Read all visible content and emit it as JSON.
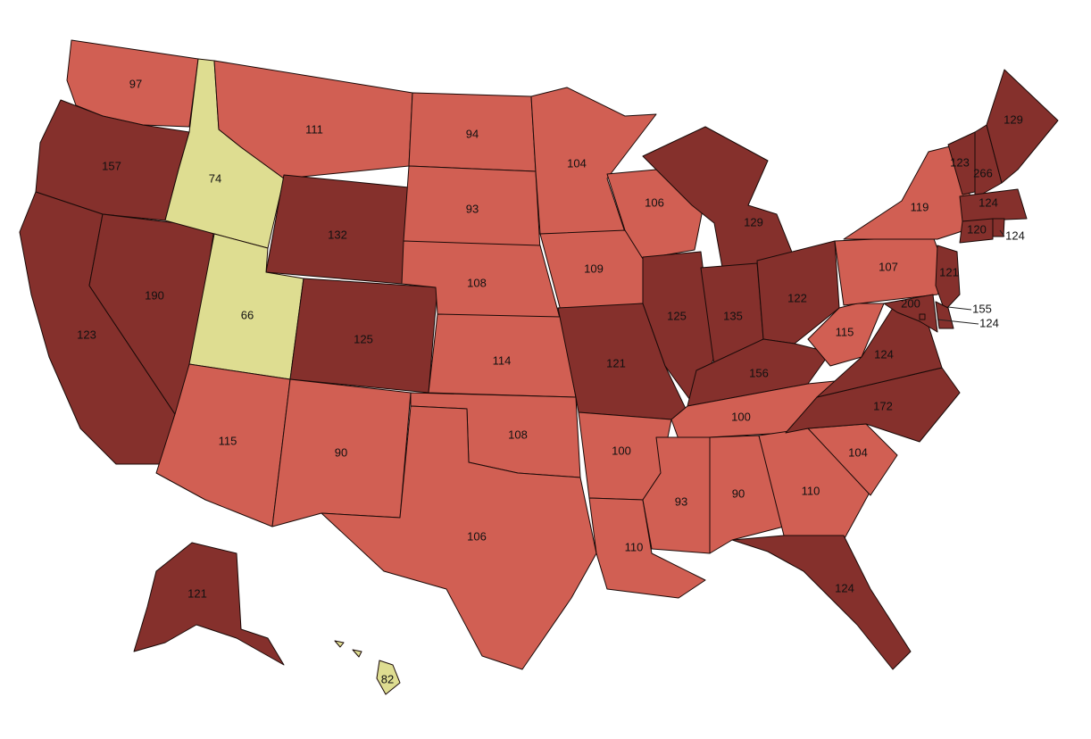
{
  "colors": {
    "high": "#85302c",
    "mid": "#d15f53",
    "low": "#dedd91",
    "background": "#ffffff"
  },
  "legend_thresholds": {
    "low_below": 90,
    "high_from": 120
  },
  "states": [
    {
      "code": "WA",
      "value": 97
    },
    {
      "code": "OR",
      "value": 157
    },
    {
      "code": "CA",
      "value": 123
    },
    {
      "code": "NV",
      "value": 190
    },
    {
      "code": "ID",
      "value": 74
    },
    {
      "code": "MT",
      "value": 111
    },
    {
      "code": "WY",
      "value": 132
    },
    {
      "code": "UT",
      "value": 66
    },
    {
      "code": "CO",
      "value": 125
    },
    {
      "code": "AZ",
      "value": 115
    },
    {
      "code": "NM",
      "value": 90
    },
    {
      "code": "ND",
      "value": 94
    },
    {
      "code": "SD",
      "value": 93
    },
    {
      "code": "NE",
      "value": 108
    },
    {
      "code": "KS",
      "value": 114
    },
    {
      "code": "OK",
      "value": 108
    },
    {
      "code": "TX",
      "value": 106
    },
    {
      "code": "MN",
      "value": 104
    },
    {
      "code": "IA",
      "value": 109
    },
    {
      "code": "MO",
      "value": 121
    },
    {
      "code": "AR",
      "value": 100
    },
    {
      "code": "LA",
      "value": 110
    },
    {
      "code": "WI",
      "value": 106
    },
    {
      "code": "IL",
      "value": 125
    },
    {
      "code": "MI",
      "value": 129
    },
    {
      "code": "IN",
      "value": 135
    },
    {
      "code": "OH",
      "value": 122
    },
    {
      "code": "KY",
      "value": 156
    },
    {
      "code": "TN",
      "value": 100
    },
    {
      "code": "MS",
      "value": 93
    },
    {
      "code": "AL",
      "value": 90
    },
    {
      "code": "GA",
      "value": 110
    },
    {
      "code": "FL",
      "value": 124
    },
    {
      "code": "SC",
      "value": 104
    },
    {
      "code": "NC",
      "value": 172
    },
    {
      "code": "VA",
      "value": 124
    },
    {
      "code": "WV",
      "value": 115
    },
    {
      "code": "PA",
      "value": 107
    },
    {
      "code": "NY",
      "value": 119
    },
    {
      "code": "VT",
      "value": 123
    },
    {
      "code": "NH",
      "value": 266
    },
    {
      "code": "ME",
      "value": 129
    },
    {
      "code": "MA",
      "value": 124
    },
    {
      "code": "RI",
      "value": 124
    },
    {
      "code": "CT",
      "value": 120
    },
    {
      "code": "NJ",
      "value": 121
    },
    {
      "code": "DE",
      "value": 155
    },
    {
      "code": "MD",
      "value": 200
    },
    {
      "code": "DC",
      "value": 124
    },
    {
      "code": "AK",
      "value": 121
    },
    {
      "code": "HI",
      "value": 82
    }
  ]
}
